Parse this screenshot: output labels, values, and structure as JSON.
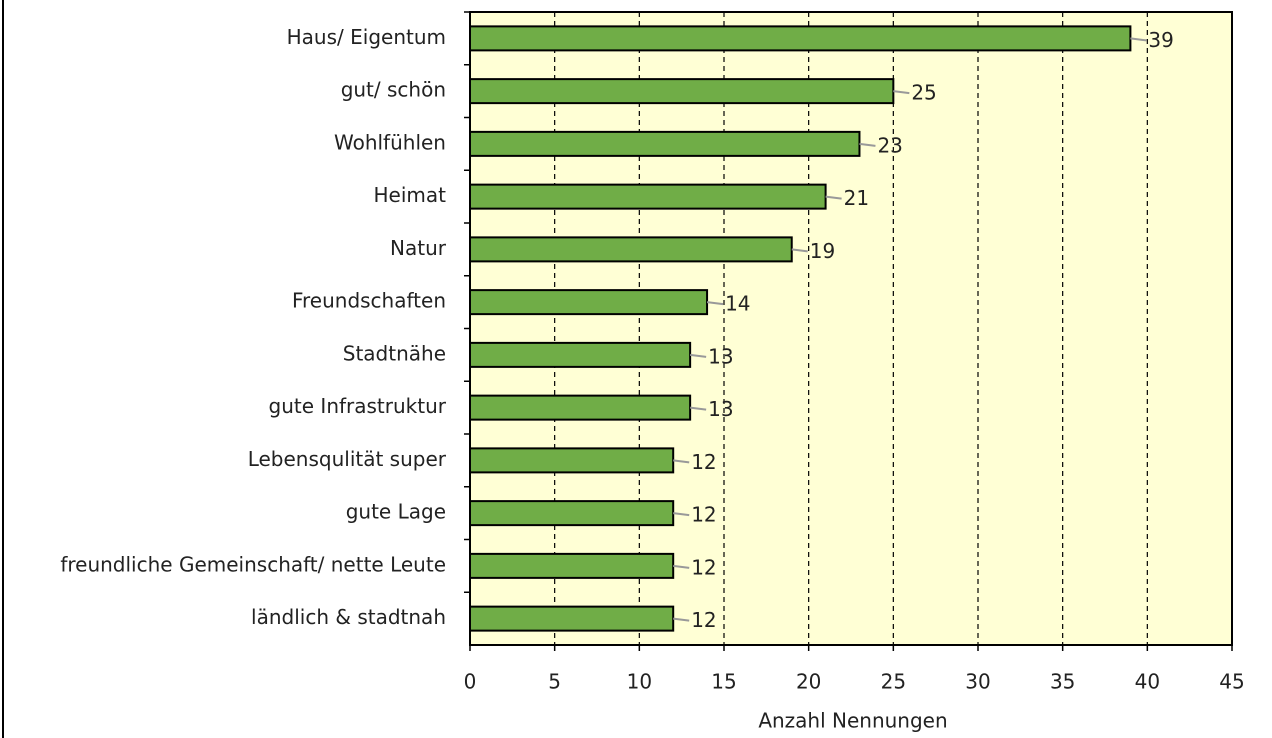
{
  "chart_data": {
    "type": "barh",
    "categories": [
      "Haus/ Eigentum",
      "gut/ schön",
      "Wohlfühlen",
      "Heimat",
      "Natur",
      "Freundschaften",
      "Stadtnähe",
      "gute Infrastruktur",
      "Lebensqulität super",
      "gute Lage",
      "freundliche Gemeinschaft/ nette Leute",
      "ländlich & stadtnah"
    ],
    "values": [
      39,
      25,
      23,
      21,
      19,
      14,
      13,
      13,
      12,
      12,
      12,
      12
    ],
    "color": "#70ad47",
    "x_label": "Anzahl Nennungen",
    "xlim": [
      0,
      45
    ],
    "xticks": [
      0,
      5,
      10,
      15,
      20,
      25,
      30,
      35,
      40,
      45
    ],
    "grid": true
  }
}
